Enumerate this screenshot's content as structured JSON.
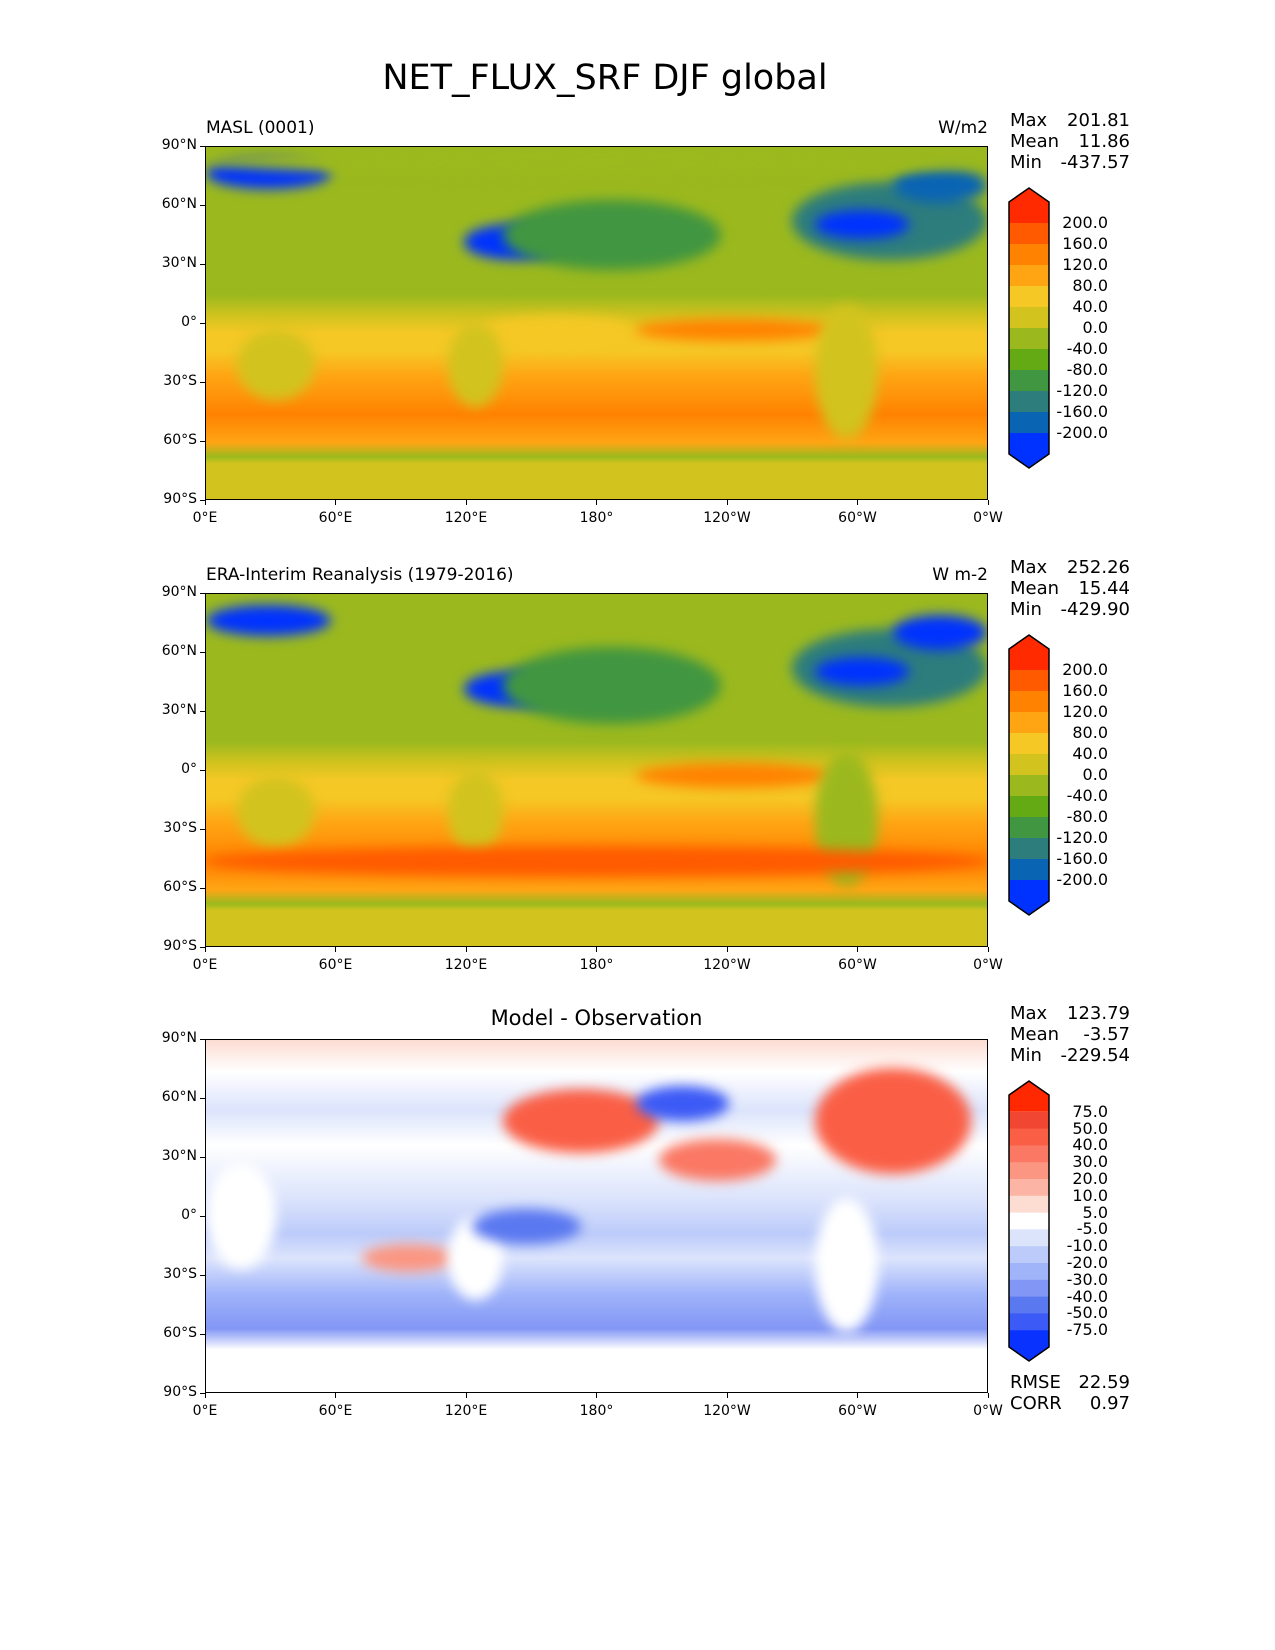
{
  "title": "NET_FLUX_SRF DJF global",
  "chart_data": {
    "type": "heatmap",
    "title": "NET_FLUX_SRF DJF global",
    "xticks": [
      "0°E",
      "60°E",
      "120°E",
      "180°",
      "120°W",
      "60°W",
      "0°W"
    ],
    "yticks": [
      "90°N",
      "60°N",
      "30°N",
      "0°",
      "30°S",
      "60°S",
      "90°S"
    ],
    "xlim": [
      0,
      360
    ],
    "ylim": [
      -90,
      90
    ],
    "panels": [
      {
        "left_title": "MASL (0001)",
        "right_title": "W/m2",
        "center_title": "",
        "stats": {
          "max_label": "Max",
          "max": "201.81",
          "mean_label": "Mean",
          "mean": "11.86",
          "min_label": "Min",
          "min": "-437.57"
        },
        "levels": [
          "200.0",
          "160.0",
          "120.0",
          "80.0",
          "40.0",
          "0.0",
          "-40.0",
          "-80.0",
          "-120.0",
          "-160.0",
          "-200.0"
        ],
        "colors": [
          "#ff2a00",
          "#ff5a00",
          "#ff8200",
          "#ffa514",
          "#f5c825",
          "#d2c31e",
          "#9bb91e",
          "#64aa14",
          "#419641",
          "#2d7d7d",
          "#0a64b4",
          "#0032ff"
        ],
        "kind": "abs"
      },
      {
        "left_title": "ERA-Interim Reanalysis (1979-2016)",
        "right_title": "W m-2",
        "center_title": "",
        "stats": {
          "max_label": "Max",
          "max": "252.26",
          "mean_label": "Mean",
          "mean": "15.44",
          "min_label": "Min",
          "min": "-429.90"
        },
        "levels": [
          "200.0",
          "160.0",
          "120.0",
          "80.0",
          "40.0",
          "0.0",
          "-40.0",
          "-80.0",
          "-120.0",
          "-160.0",
          "-200.0"
        ],
        "colors": [
          "#ff2a00",
          "#ff5a00",
          "#ff8200",
          "#ffa514",
          "#f5c825",
          "#d2c31e",
          "#9bb91e",
          "#64aa14",
          "#419641",
          "#2d7d7d",
          "#0a64b4",
          "#0032ff"
        ],
        "kind": "abs"
      },
      {
        "left_title": "",
        "right_title": "",
        "center_title": "Model - Observation",
        "stats": {
          "max_label": "Max",
          "max": "123.79",
          "mean_label": "Mean",
          "mean": "-3.57",
          "min_label": "Min",
          "min": "-229.54"
        },
        "levels": [
          "75.0",
          "50.0",
          "40.0",
          "30.0",
          "20.0",
          "10.0",
          "5.0",
          "-5.0",
          "-10.0",
          "-20.0",
          "-30.0",
          "-40.0",
          "-50.0",
          "-75.0"
        ],
        "colors": [
          "#ff2800",
          "#f04632",
          "#fa5f46",
          "#fa7864",
          "#fa9682",
          "#fcb4a5",
          "#fddcd2",
          "#ffffff",
          "#dce4fc",
          "#bccbfa",
          "#a0b4fa",
          "#8296f5",
          "#5a78f0",
          "#3c5af5",
          "#0a32ff"
        ],
        "kind": "diff",
        "metrics": {
          "rmse_label": "RMSE",
          "rmse": "22.59",
          "corr_label": "CORR",
          "corr": "0.97"
        }
      }
    ]
  }
}
